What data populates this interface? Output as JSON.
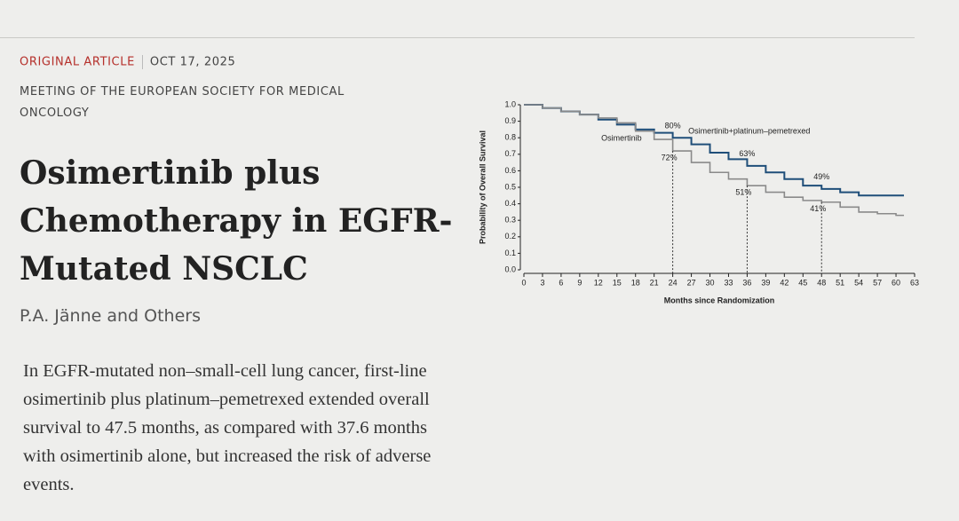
{
  "header": {
    "section": "ORIGINAL ARTICLE",
    "date": "OCT 17, 2025",
    "meeting": "MEETING OF THE EUROPEAN SOCIETY FOR MEDICAL ONCOLOGY"
  },
  "title": "Osimertinib plus Chemotherapy in EGFR-Mutated NSCLC",
  "authors": "P.A. Jänne and Others",
  "summary": "In EGFR-mutated non–small-cell lung cancer, first-line osimertinib plus platinum–pemetrexed extended overall survival to 47.5 months, as compared with 37.6 months with osimertinib alone, but increased the risk of adverse events.",
  "chart_data": {
    "type": "line",
    "step": true,
    "x_label": "Months since Randomization",
    "y_label": "Probability of Overall Survival",
    "xlim": [
      0,
      63
    ],
    "xticks": [
      0,
      3,
      6,
      9,
      12,
      15,
      18,
      21,
      24,
      27,
      30,
      33,
      36,
      39,
      42,
      45,
      48,
      51,
      54,
      57,
      60,
      63
    ],
    "ylim": [
      0,
      1
    ],
    "yticks": [
      {
        "value": 0,
        "label": "0.0"
      },
      0.1,
      0.2,
      0.3,
      0.4,
      0.5,
      0.6,
      0.7,
      0.8,
      0.9,
      {
        "value": 1,
        "label": "1.0"
      }
    ],
    "series": [
      {
        "name": "Osimertinib+platinum–pemetrexed",
        "color": "#1f4e79",
        "x": [
          0,
          3,
          6,
          9,
          12,
          15,
          18,
          21,
          24,
          27,
          30,
          33,
          36,
          39,
          42,
          45,
          48,
          51,
          54,
          57,
          60
        ],
        "values": [
          1.0,
          0.98,
          0.96,
          0.94,
          0.91,
          0.88,
          0.85,
          0.83,
          0.8,
          0.76,
          0.71,
          0.67,
          0.63,
          0.59,
          0.55,
          0.51,
          0.49,
          0.47,
          0.45,
          0.45,
          0.45
        ]
      },
      {
        "name": "Osimertinib",
        "color": "#8a8a8a",
        "x": [
          0,
          3,
          6,
          9,
          12,
          15,
          18,
          21,
          24,
          27,
          30,
          33,
          36,
          39,
          42,
          45,
          48,
          51,
          54,
          57,
          60
        ],
        "values": [
          1.0,
          0.98,
          0.96,
          0.94,
          0.92,
          0.89,
          0.84,
          0.79,
          0.72,
          0.65,
          0.59,
          0.55,
          0.51,
          0.47,
          0.44,
          0.42,
          0.41,
          0.38,
          0.35,
          0.34,
          0.33
        ]
      }
    ],
    "annotations": [
      {
        "text": "80%",
        "x": 24,
        "y": 0.8
      },
      {
        "text": "63%",
        "x": 36,
        "y": 0.63
      },
      {
        "text": "49%",
        "x": 48,
        "y": 0.49
      },
      {
        "text": "72%",
        "x": 24,
        "y": 0.72
      },
      {
        "text": "51%",
        "x": 36,
        "y": 0.51
      },
      {
        "text": "41%",
        "x": 48,
        "y": 0.41
      }
    ]
  }
}
